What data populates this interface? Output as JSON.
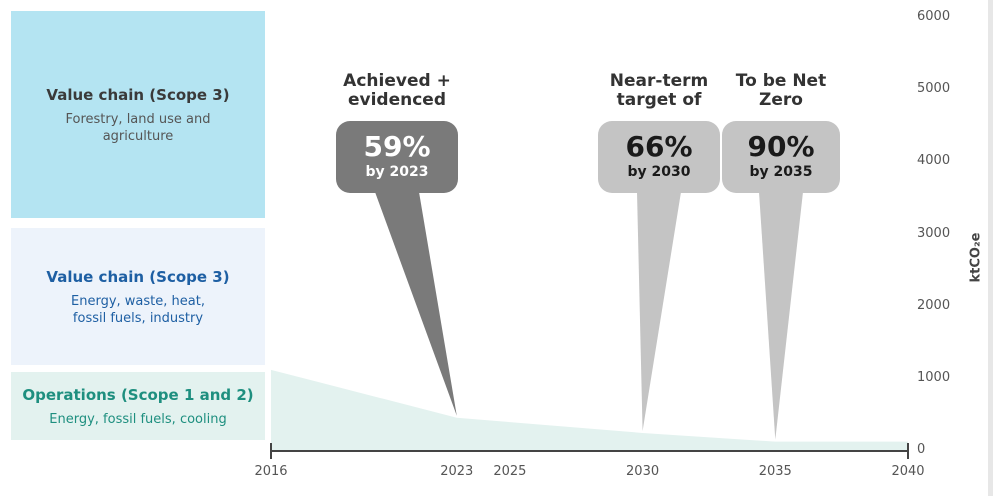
{
  "blocks": [
    {
      "title": "Value chain (Scope 3)",
      "sub": "Forestry, land use and agriculture",
      "color": "#b4e4f2"
    },
    {
      "title": "Value chain (Scope 3)",
      "sub": "Energy, waste, heat, fossil fuels, industry",
      "color": "#edf3fb"
    },
    {
      "title": "Operations (Scope 1 and 2)",
      "sub": "Energy, fossil fuels, cooling",
      "color": "#e3f2ef"
    }
  ],
  "milestones": [
    {
      "heading": "Achieved + evidenced",
      "percent": "59%",
      "by": "by 2023",
      "color": "#7a7a7a"
    },
    {
      "heading": "Near-term target of",
      "percent": "66%",
      "by": "by 2030",
      "color": "#c4c4c4"
    },
    {
      "heading": "To be Net Zero",
      "percent": "90%",
      "by": "by 2035",
      "color": "#c4c4c4"
    }
  ],
  "y_unit": "ktCO₂e",
  "chart_data": {
    "type": "area",
    "x": [
      2016,
      2023,
      2025,
      2030,
      2035,
      2040
    ],
    "series": [
      {
        "values": [
          1125,
          461,
          400,
          250,
          130,
          130
        ]
      }
    ],
    "x_ticks": [
      "2016",
      "2023",
      "2025",
      "2030",
      "2035",
      "2040"
    ],
    "y_ticks": [
      "6000",
      "5000",
      "4000",
      "3000",
      "2000",
      "1000",
      "0"
    ],
    "ylim": [
      0,
      6000
    ],
    "xlim": [
      2016,
      2040
    ],
    "ylabel": "ktCO₂e",
    "area_color": "#e3f2ef",
    "axis_color": "#444444",
    "grid": false
  }
}
